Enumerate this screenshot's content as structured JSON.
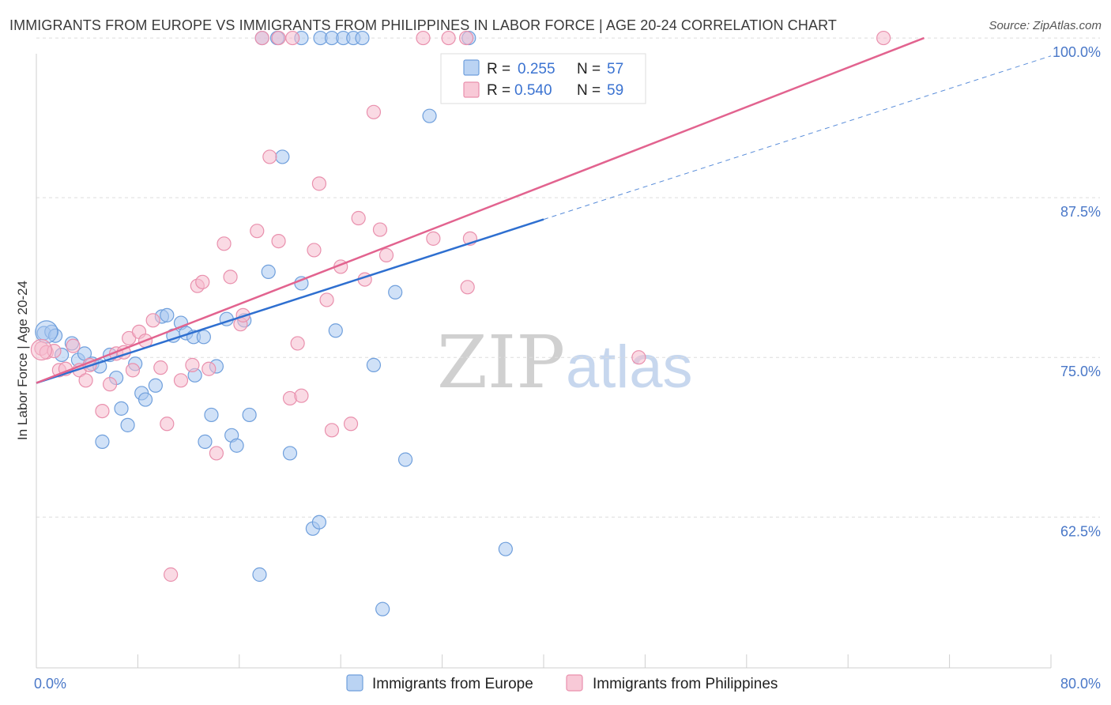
{
  "header": {
    "title": "IMMIGRANTS FROM EUROPE VS IMMIGRANTS FROM PHILIPPINES IN LABOR FORCE | AGE 20-24 CORRELATION CHART",
    "source": "Source: ZipAtlas.com"
  },
  "colors": {
    "europe_fill": "#a9c8f0",
    "europe_stroke": "#6f9fdc",
    "europe_line": "#2e6fd0",
    "philippines_fill": "#f6bccd",
    "philippines_stroke": "#e990ad",
    "philippines_line": "#e2638f",
    "tick_label": "#4a78c8",
    "grid": "#dedede"
  },
  "watermark": {
    "zip": "ZIP",
    "atlas": "atlas"
  },
  "legend": {
    "r_label": "R =",
    "n_label": "N =",
    "europe": {
      "r": "0.255",
      "n": "57"
    },
    "philippines": {
      "r": "0.540",
      "n": "59"
    }
  },
  "chart_data": {
    "type": "scatter",
    "title": "IMMIGRANTS FROM EUROPE VS IMMIGRANTS FROM PHILIPPINES IN LABOR FORCE | AGE 20-24 CORRELATION CHART",
    "xlabel": "",
    "ylabel": "In Labor Force | Age 20-24",
    "xlim": [
      0,
      80
    ],
    "ylim": [
      50.7,
      100.5
    ],
    "x_tick_labels": [
      {
        "value": 0,
        "label": "0.0%"
      },
      {
        "value": 80,
        "label": "80.0%"
      }
    ],
    "y_tick_labels": [
      {
        "value": 62.5,
        "label": "62.5%"
      },
      {
        "value": 75.0,
        "label": "75.0%"
      },
      {
        "value": 87.5,
        "label": "87.5%"
      },
      {
        "value": 100.0,
        "label": "100.0%"
      }
    ],
    "grid": true,
    "legend_position": "top-center",
    "series": [
      {
        "name": "Immigrants from Europe",
        "r": 0.255,
        "n": 57,
        "trend": {
          "x": [
            0,
            40
          ],
          "y": [
            73.0,
            85.8
          ],
          "dashed_extension": {
            "x": [
              40,
              80
            ],
            "y": [
              85.8,
              98.6
            ]
          }
        },
        "points": [
          [
            0.6,
            76.9
          ],
          [
            1.2,
            77.0
          ],
          [
            1.5,
            76.7
          ],
          [
            2.0,
            75.2
          ],
          [
            2.8,
            76.1
          ],
          [
            3.3,
            74.8
          ],
          [
            3.8,
            75.3
          ],
          [
            4.4,
            74.5
          ],
          [
            5.0,
            74.3
          ],
          [
            5.2,
            68.4
          ],
          [
            5.8,
            75.2
          ],
          [
            6.3,
            73.4
          ],
          [
            6.7,
            71.0
          ],
          [
            7.2,
            69.7
          ],
          [
            7.8,
            74.5
          ],
          [
            8.3,
            72.2
          ],
          [
            8.6,
            71.7
          ],
          [
            9.4,
            72.8
          ],
          [
            9.9,
            78.2
          ],
          [
            10.3,
            78.3
          ],
          [
            10.8,
            76.7
          ],
          [
            11.4,
            77.7
          ],
          [
            11.8,
            76.9
          ],
          [
            12.4,
            76.6
          ],
          [
            12.5,
            73.6
          ],
          [
            13.2,
            76.6
          ],
          [
            13.3,
            68.4
          ],
          [
            13.8,
            70.5
          ],
          [
            14.2,
            74.3
          ],
          [
            15.0,
            78.0
          ],
          [
            15.4,
            68.9
          ],
          [
            15.8,
            68.1
          ],
          [
            16.4,
            77.9
          ],
          [
            16.8,
            70.5
          ],
          [
            17.6,
            58.0
          ],
          [
            18.3,
            81.7
          ],
          [
            19.4,
            90.7
          ],
          [
            20.0,
            67.5
          ],
          [
            20.9,
            80.8
          ],
          [
            21.8,
            61.6
          ],
          [
            22.3,
            62.1
          ],
          [
            23.6,
            77.1
          ],
          [
            26.6,
            74.4
          ],
          [
            27.3,
            55.3
          ],
          [
            28.3,
            80.1
          ],
          [
            29.1,
            67.0
          ],
          [
            31.0,
            93.9
          ],
          [
            37.0,
            60.0
          ],
          [
            17.8,
            100.0
          ],
          [
            19.0,
            100.0
          ],
          [
            20.9,
            100.0
          ],
          [
            22.4,
            100.0
          ],
          [
            23.3,
            100.0
          ],
          [
            24.2,
            100.0
          ],
          [
            25.0,
            100.0
          ],
          [
            25.7,
            100.0
          ],
          [
            34.1,
            100.0
          ]
        ]
      },
      {
        "name": "Immigrants from Philippines",
        "r": 0.54,
        "n": 59,
        "trend": {
          "x": [
            0,
            70
          ],
          "y": [
            73.0,
            100.0
          ]
        },
        "points": [
          [
            0.4,
            75.7
          ],
          [
            0.8,
            75.4
          ],
          [
            1.4,
            75.5
          ],
          [
            1.8,
            74.0
          ],
          [
            2.3,
            74.1
          ],
          [
            2.9,
            75.9
          ],
          [
            3.4,
            74.0
          ],
          [
            3.9,
            73.2
          ],
          [
            4.2,
            74.4
          ],
          [
            5.2,
            70.8
          ],
          [
            5.8,
            72.9
          ],
          [
            6.3,
            75.3
          ],
          [
            6.9,
            75.4
          ],
          [
            7.3,
            76.5
          ],
          [
            7.6,
            74.0
          ],
          [
            8.1,
            77.0
          ],
          [
            8.6,
            76.3
          ],
          [
            9.2,
            77.9
          ],
          [
            9.8,
            74.2
          ],
          [
            10.3,
            69.8
          ],
          [
            10.6,
            58.0
          ],
          [
            11.4,
            73.2
          ],
          [
            12.3,
            74.4
          ],
          [
            12.7,
            80.6
          ],
          [
            13.1,
            80.9
          ],
          [
            13.6,
            74.1
          ],
          [
            14.2,
            67.5
          ],
          [
            14.8,
            83.9
          ],
          [
            15.3,
            81.3
          ],
          [
            16.1,
            77.6
          ],
          [
            16.3,
            78.3
          ],
          [
            17.4,
            84.9
          ],
          [
            18.4,
            90.7
          ],
          [
            19.1,
            84.1
          ],
          [
            20.0,
            71.8
          ],
          [
            20.6,
            76.1
          ],
          [
            20.9,
            72.0
          ],
          [
            21.9,
            83.4
          ],
          [
            22.3,
            88.6
          ],
          [
            22.9,
            79.5
          ],
          [
            23.3,
            69.3
          ],
          [
            24.0,
            82.1
          ],
          [
            24.8,
            69.8
          ],
          [
            25.4,
            85.9
          ],
          [
            25.9,
            81.1
          ],
          [
            26.6,
            94.2
          ],
          [
            27.1,
            85.0
          ],
          [
            27.6,
            83.0
          ],
          [
            31.3,
            84.3
          ],
          [
            34.2,
            84.3
          ],
          [
            34.0,
            80.5
          ],
          [
            47.5,
            75.0
          ],
          [
            17.8,
            100.0
          ],
          [
            19.1,
            100.0
          ],
          [
            20.2,
            100.0
          ],
          [
            30.5,
            100.0
          ],
          [
            32.5,
            100.0
          ],
          [
            33.9,
            100.0
          ],
          [
            66.8,
            100.0
          ]
        ]
      }
    ]
  },
  "bottom_legend": {
    "europe_label": "Immigrants from Europe",
    "philippines_label": "Immigrants from Philippines"
  }
}
